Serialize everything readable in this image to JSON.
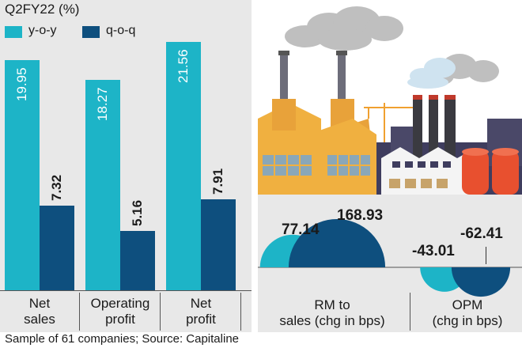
{
  "colors": {
    "yoy": "#1db4c7",
    "qoq": "#0e4f7e",
    "panel_bg": "#e8e8e8"
  },
  "chart_data": [
    {
      "type": "bar",
      "title": "Q2FY22 (%)",
      "categories": [
        "Net sales",
        "Operating profit",
        "Net profit"
      ],
      "category_lines": [
        [
          "Net",
          "sales"
        ],
        [
          "Operating",
          "profit"
        ],
        [
          "Net",
          "profit"
        ]
      ],
      "series": [
        {
          "name": "y-o-y",
          "values": [
            19.95,
            18.27,
            21.56
          ]
        },
        {
          "name": "q-o-q",
          "values": [
            7.32,
            5.16,
            7.91
          ]
        }
      ],
      "ylim": [
        0,
        22.5
      ],
      "xlabel": "",
      "ylabel": ""
    },
    {
      "type": "bar",
      "title": "",
      "categories": [
        "RM to sales (chg in bps)",
        "OPM (chg in bps)"
      ],
      "category_lines": [
        [
          "RM to",
          "sales (chg in bps)"
        ],
        [
          "OPM",
          "(chg in bps)"
        ]
      ],
      "series": [
        {
          "name": "y-o-y",
          "values": [
            77.14,
            -43.01
          ]
        },
        {
          "name": "q-o-q",
          "values": [
            168.93,
            -62.41
          ]
        }
      ],
      "ylim": [
        -70,
        180
      ]
    }
  ],
  "footer": "Sample of 61 companies; Source: Capitaline"
}
